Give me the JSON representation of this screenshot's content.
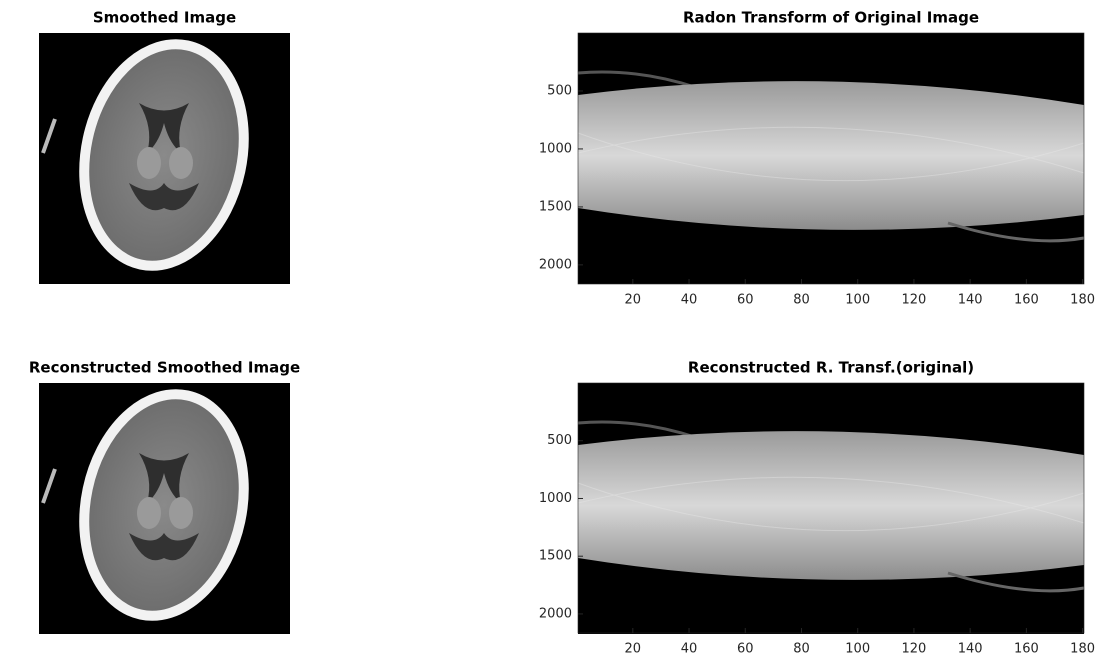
{
  "panels": [
    {
      "title": "Smoothed Image"
    },
    {
      "title": "Radon Transform of Original Image",
      "xlim": [
        0.5,
        180.5
      ],
      "ylim": [
        0,
        2165
      ],
      "y_reversed": true,
      "xticks": [
        20,
        40,
        60,
        80,
        100,
        120,
        140,
        160,
        180
      ],
      "yticks": [
        500,
        1000,
        1500,
        2000
      ]
    },
    {
      "title": "Reconstructed  Smoothed Image"
    },
    {
      "title": "Reconstructed R. Transf.(original)",
      "xlim": [
        0.5,
        180.5
      ],
      "ylim": [
        0,
        2165
      ],
      "y_reversed": true,
      "xticks": [
        20,
        40,
        60,
        80,
        100,
        120,
        140,
        160,
        180
      ],
      "yticks": [
        500,
        1000,
        1500,
        2000
      ]
    }
  ]
}
